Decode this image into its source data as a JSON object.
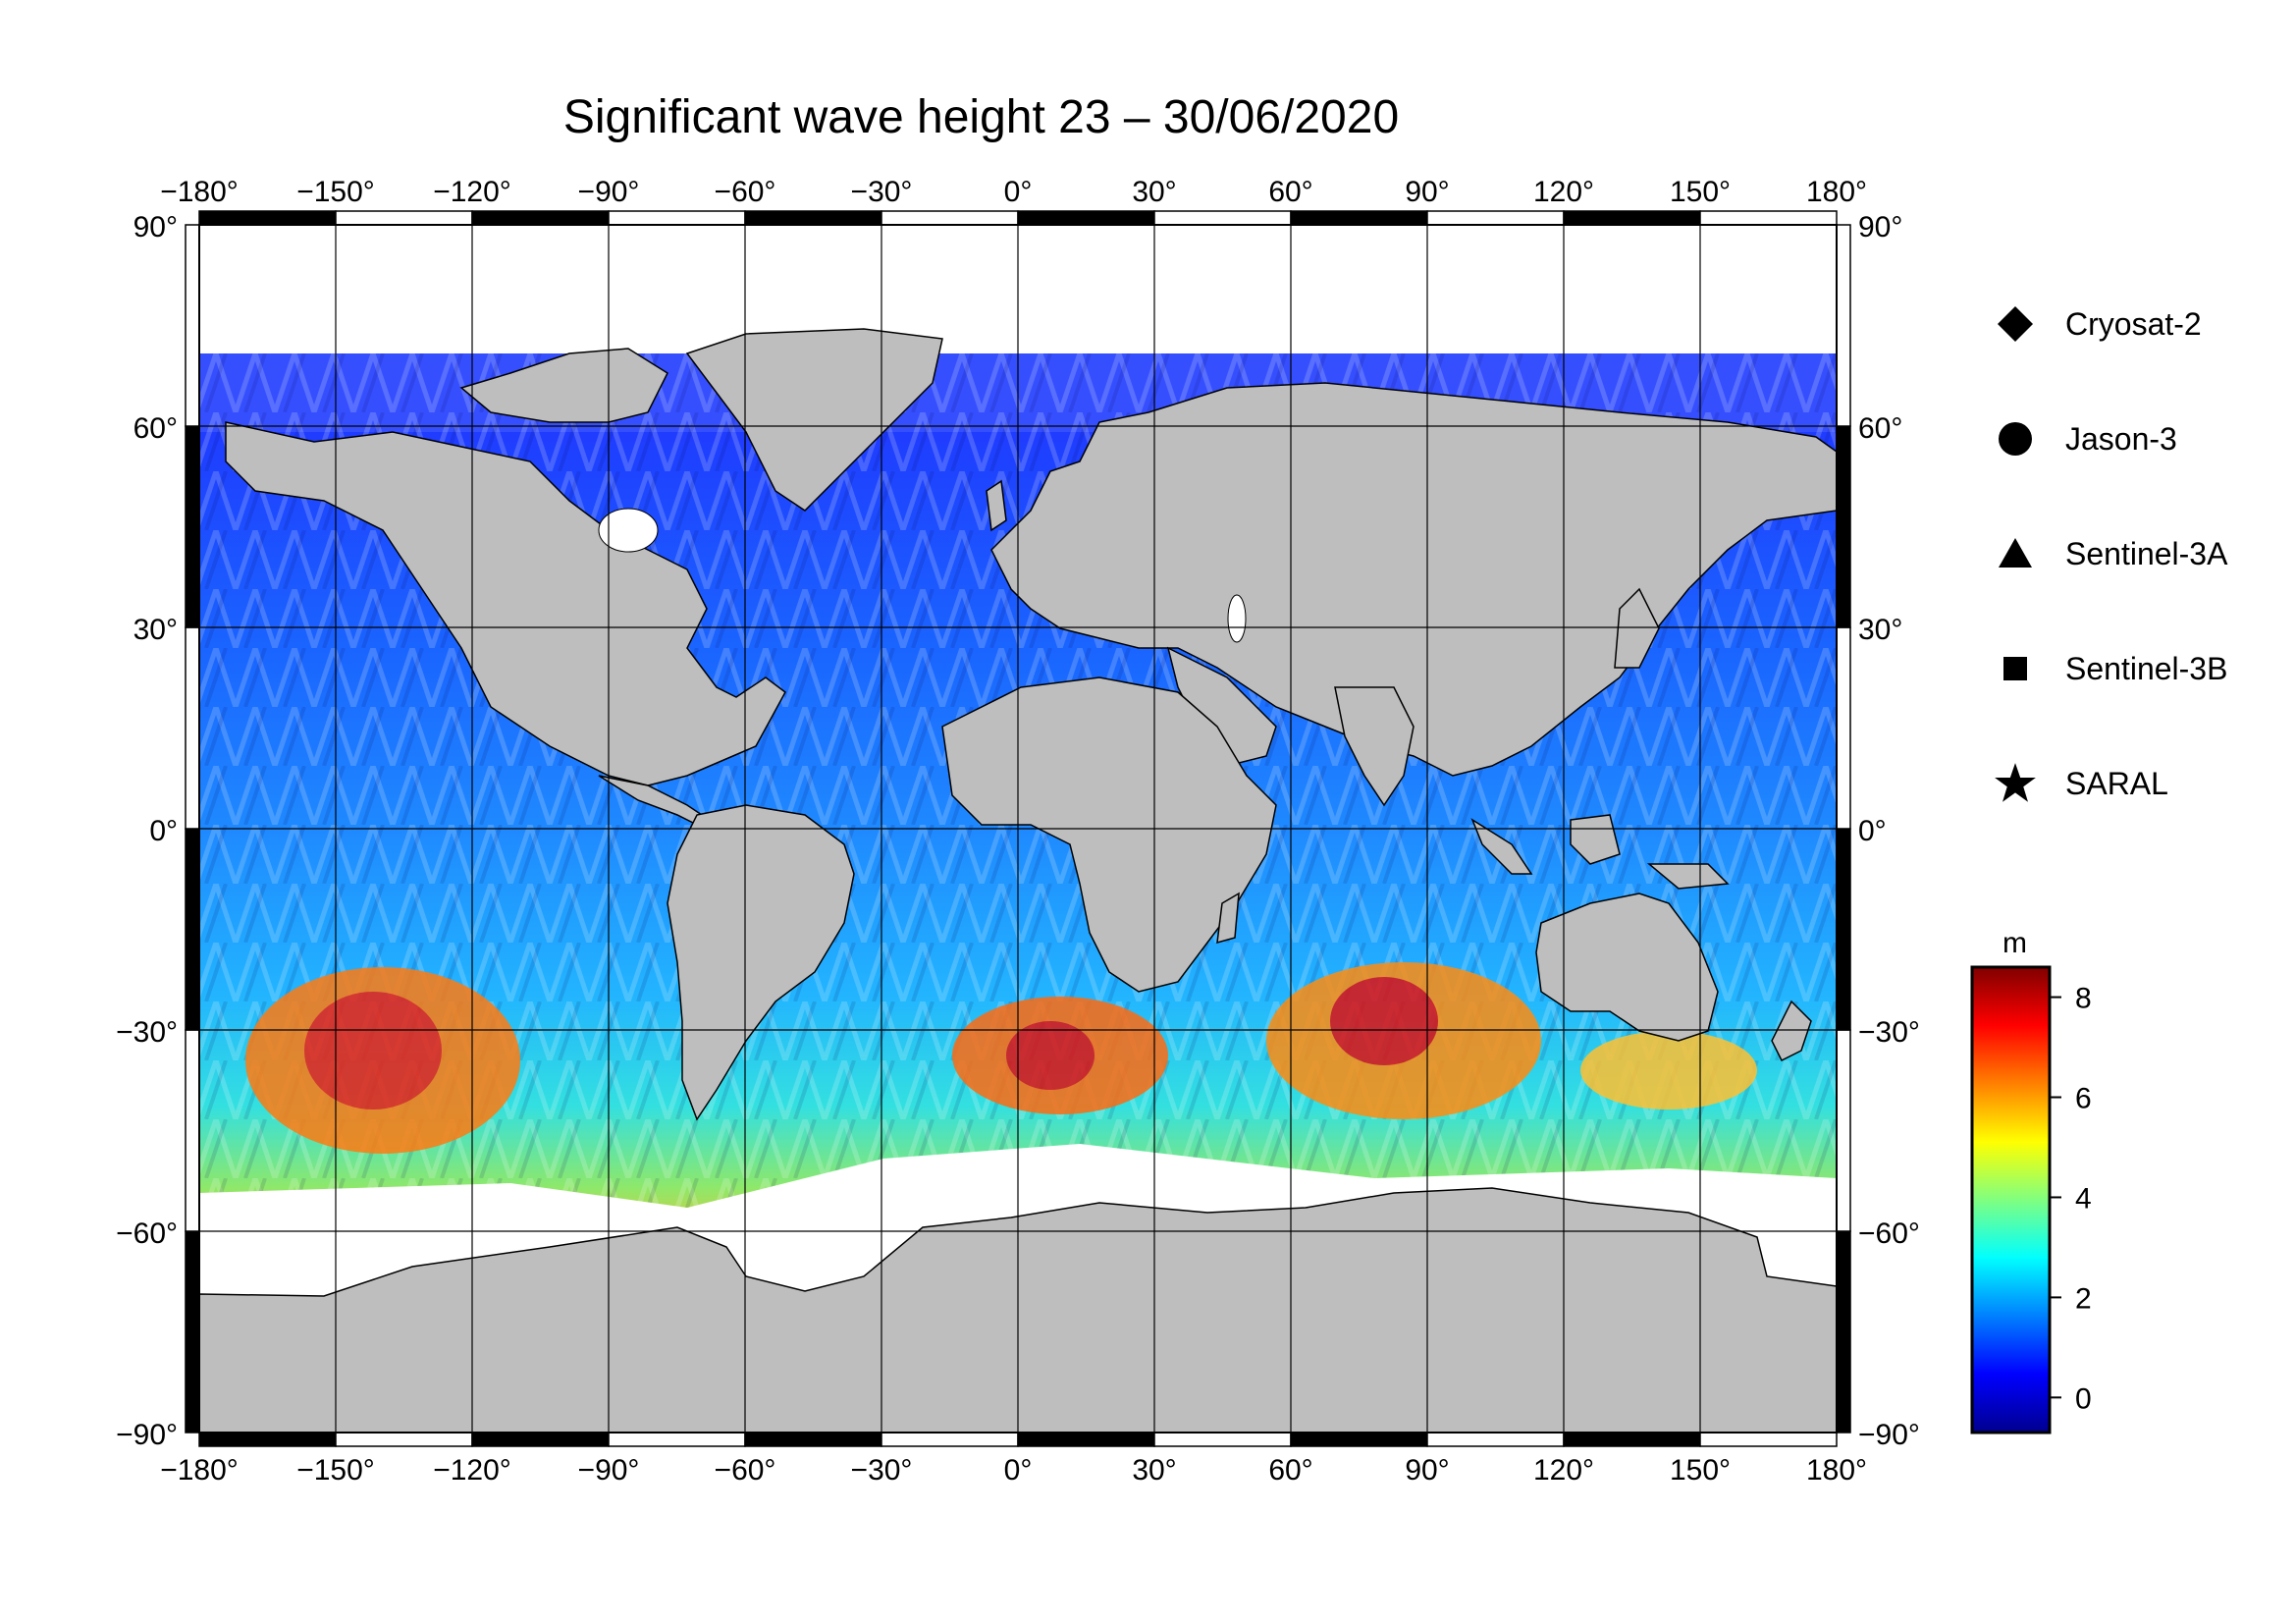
{
  "title": "Significant wave height 23 – 30/06/2020",
  "map": {
    "lon_ticks": [
      -180,
      -150,
      -120,
      -90,
      -60,
      -30,
      0,
      30,
      60,
      90,
      120,
      150,
      180
    ],
    "lat_ticks": [
      -90,
      -60,
      -30,
      0,
      30,
      60,
      90
    ],
    "degree_symbol": "°",
    "land_color": "#bebebe",
    "ice_color": "#ffffff",
    "border_color": "#000000"
  },
  "legend": {
    "items": [
      {
        "symbol": "diamond",
        "label": "Cryosat-2"
      },
      {
        "symbol": "circle",
        "label": "Jason-3"
      },
      {
        "symbol": "triangle",
        "label": "Sentinel-3A"
      },
      {
        "symbol": "square",
        "label": "Sentinel-3B"
      },
      {
        "symbol": "star",
        "label": "SARAL"
      }
    ]
  },
  "colorbar": {
    "unit": "m",
    "min": -0.7,
    "max": 8.6,
    "ticks": [
      0,
      2,
      4,
      6,
      8
    ],
    "colormap": [
      "#00008f",
      "#0000ff",
      "#0080ff",
      "#00ffff",
      "#80ff80",
      "#ffff00",
      "#ff8000",
      "#ff0000",
      "#800000"
    ]
  }
}
